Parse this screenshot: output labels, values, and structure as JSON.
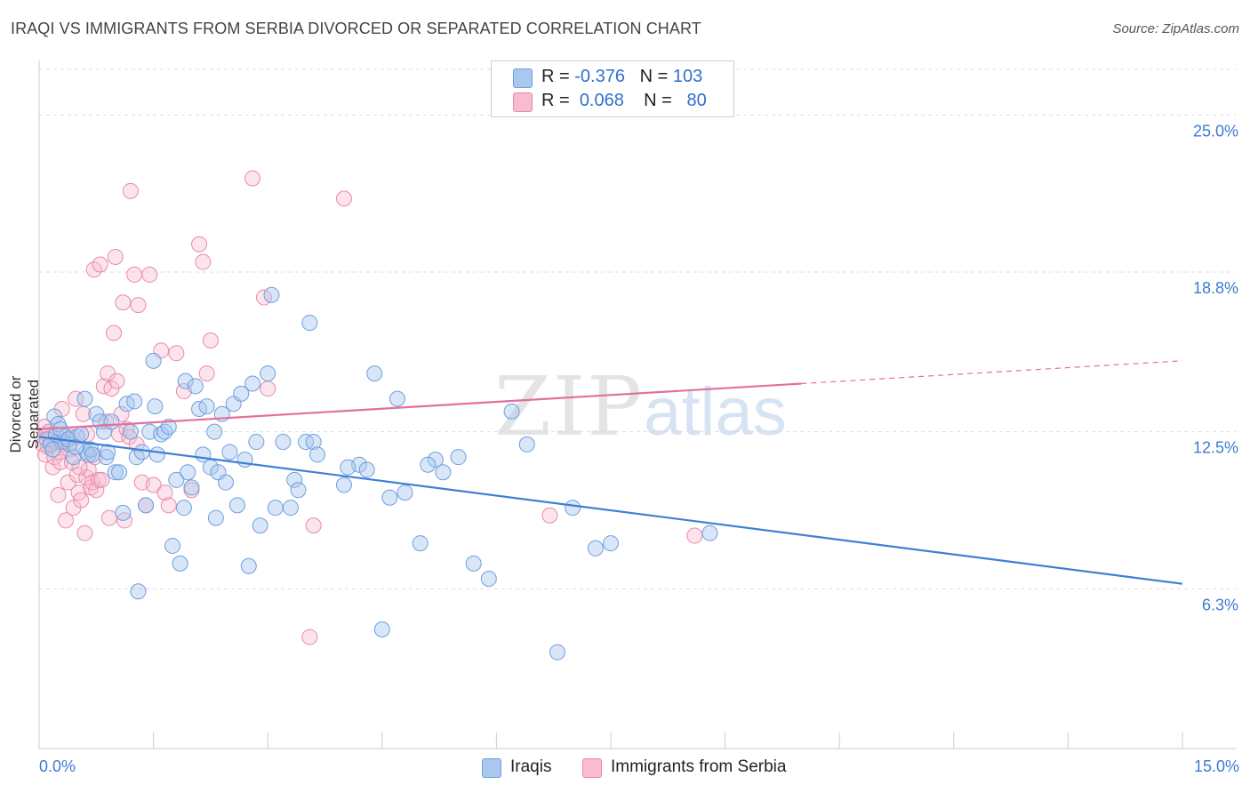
{
  "header": {
    "title": "IRAQI VS IMMIGRANTS FROM SERBIA DIVORCED OR SEPARATED CORRELATION CHART",
    "source": "Source: ZipAtlas.com"
  },
  "watermark": {
    "zip": "ZIP",
    "atlas": "atlas"
  },
  "legend": {
    "rows": [
      {
        "r_label": "R = ",
        "r_value": "-0.376",
        "n_label": "N = ",
        "n_value": "103",
        "color": "#a9c8f0",
        "border": "#6f9fdf"
      },
      {
        "r_label": "R = ",
        "r_value": "0.068",
        "n_label": "N = ",
        "n_value": "80",
        "color": "#f7bcd0",
        "border": "#e98aaa"
      }
    ]
  },
  "bottom_legend": [
    {
      "label": "Iraqis",
      "color": "#a9c8f0",
      "border": "#6f9fdf"
    },
    {
      "label": "Immigrants from Serbia",
      "color": "#f7bcd0",
      "border": "#e98aaa"
    }
  ],
  "chart_data": {
    "type": "scatter",
    "ylabel": "Divorced or Separated",
    "xlabel": "",
    "xlim": [
      0,
      15
    ],
    "ylim": [
      0,
      26.8
    ],
    "x_tick_labels": [
      "0.0%",
      "15.0%"
    ],
    "y_ticks": [
      6.3,
      12.5,
      18.8,
      25.0
    ],
    "y_tick_labels": [
      "6.3%",
      "12.5%",
      "18.8%",
      "25.0%"
    ],
    "grid": "horizontal-dashed",
    "colors": {
      "iraqis": "#3f7fd6",
      "serbia": "#e2709b"
    },
    "series": [
      {
        "name": "Iraqis",
        "trend": {
          "x0": 0,
          "y0": 12.3,
          "x1": 15,
          "y1": 6.5
        },
        "points": [
          [
            0.1,
            12.2
          ],
          [
            0.15,
            12.0
          ],
          [
            0.2,
            13.1
          ],
          [
            0.22,
            12.4
          ],
          [
            0.25,
            12.8
          ],
          [
            0.3,
            12.1
          ],
          [
            0.35,
            12.3
          ],
          [
            0.4,
            12.0
          ],
          [
            0.45,
            11.5
          ],
          [
            0.5,
            12.3
          ],
          [
            0.55,
            12.4
          ],
          [
            0.6,
            13.8
          ],
          [
            0.62,
            11.7
          ],
          [
            0.65,
            11.6
          ],
          [
            0.68,
            11.8
          ],
          [
            0.7,
            11.6
          ],
          [
            0.75,
            13.2
          ],
          [
            0.8,
            12.9
          ],
          [
            0.85,
            12.5
          ],
          [
            0.88,
            11.5
          ],
          [
            0.9,
            11.7
          ],
          [
            0.95,
            12.9
          ],
          [
            1.0,
            10.9
          ],
          [
            1.05,
            10.9
          ],
          [
            1.1,
            9.3
          ],
          [
            1.15,
            13.6
          ],
          [
            1.2,
            12.5
          ],
          [
            1.25,
            13.7
          ],
          [
            1.28,
            11.5
          ],
          [
            1.3,
            6.2
          ],
          [
            1.4,
            9.6
          ],
          [
            1.45,
            12.5
          ],
          [
            1.5,
            15.3
          ],
          [
            1.52,
            13.5
          ],
          [
            1.55,
            11.6
          ],
          [
            1.6,
            12.4
          ],
          [
            1.65,
            12.5
          ],
          [
            1.7,
            12.7
          ],
          [
            1.75,
            8.0
          ],
          [
            1.8,
            10.6
          ],
          [
            1.85,
            7.3
          ],
          [
            1.9,
            9.5
          ],
          [
            1.92,
            14.5
          ],
          [
            1.95,
            10.9
          ],
          [
            2.0,
            10.3
          ],
          [
            2.05,
            14.3
          ],
          [
            2.1,
            13.4
          ],
          [
            2.15,
            11.6
          ],
          [
            2.2,
            13.5
          ],
          [
            2.25,
            11.1
          ],
          [
            2.3,
            12.5
          ],
          [
            2.32,
            9.1
          ],
          [
            2.35,
            10.9
          ],
          [
            2.4,
            13.2
          ],
          [
            2.45,
            10.5
          ],
          [
            2.5,
            11.7
          ],
          [
            2.55,
            13.6
          ],
          [
            2.6,
            9.6
          ],
          [
            2.65,
            14.0
          ],
          [
            2.7,
            11.4
          ],
          [
            2.75,
            7.2
          ],
          [
            2.8,
            14.4
          ],
          [
            2.9,
            8.8
          ],
          [
            3.0,
            14.8
          ],
          [
            3.05,
            17.9
          ],
          [
            3.1,
            9.5
          ],
          [
            3.2,
            12.1
          ],
          [
            3.3,
            9.5
          ],
          [
            3.35,
            10.6
          ],
          [
            3.4,
            10.2
          ],
          [
            3.5,
            12.1
          ],
          [
            3.55,
            16.8
          ],
          [
            3.6,
            12.1
          ],
          [
            4.0,
            10.4
          ],
          [
            4.2,
            11.2
          ],
          [
            4.3,
            11.0
          ],
          [
            4.4,
            14.8
          ],
          [
            4.5,
            4.7
          ],
          [
            4.6,
            9.9
          ],
          [
            4.7,
            13.8
          ],
          [
            4.8,
            10.1
          ],
          [
            5.0,
            8.1
          ],
          [
            5.2,
            11.4
          ],
          [
            5.3,
            10.9
          ],
          [
            5.5,
            11.5
          ],
          [
            5.7,
            7.3
          ],
          [
            5.9,
            6.7
          ],
          [
            6.2,
            13.3
          ],
          [
            6.4,
            12.0
          ],
          [
            6.8,
            3.8
          ],
          [
            7.0,
            9.5
          ],
          [
            7.3,
            7.9
          ],
          [
            7.5,
            8.1
          ],
          [
            8.8,
            8.5
          ],
          [
            0.18,
            11.8
          ],
          [
            0.28,
            12.6
          ],
          [
            0.38,
            12.2
          ],
          [
            0.48,
            11.9
          ],
          [
            1.35,
            11.7
          ],
          [
            2.85,
            12.1
          ],
          [
            3.65,
            11.6
          ],
          [
            4.05,
            11.1
          ],
          [
            5.1,
            11.2
          ]
        ]
      },
      {
        "name": "Immigrants from Serbia",
        "trend": {
          "x0": 0,
          "y0": 12.6,
          "x1": 10.0,
          "y1": 14.4,
          "dash_x1": 15,
          "dash_y1": 15.3
        },
        "points": [
          [
            0.05,
            12.0
          ],
          [
            0.08,
            11.6
          ],
          [
            0.1,
            12.4
          ],
          [
            0.12,
            11.9
          ],
          [
            0.15,
            12.2
          ],
          [
            0.18,
            11.1
          ],
          [
            0.2,
            11.5
          ],
          [
            0.22,
            12.1
          ],
          [
            0.25,
            10.0
          ],
          [
            0.28,
            11.3
          ],
          [
            0.3,
            13.4
          ],
          [
            0.32,
            12.0
          ],
          [
            0.35,
            9.0
          ],
          [
            0.38,
            10.5
          ],
          [
            0.4,
            11.8
          ],
          [
            0.42,
            12.3
          ],
          [
            0.45,
            9.5
          ],
          [
            0.48,
            13.8
          ],
          [
            0.5,
            10.8
          ],
          [
            0.52,
            10.1
          ],
          [
            0.55,
            9.8
          ],
          [
            0.58,
            13.2
          ],
          [
            0.6,
            8.5
          ],
          [
            0.62,
            10.7
          ],
          [
            0.65,
            11.0
          ],
          [
            0.68,
            10.3
          ],
          [
            0.7,
            10.5
          ],
          [
            0.72,
            18.9
          ],
          [
            0.75,
            10.2
          ],
          [
            0.78,
            10.6
          ],
          [
            0.8,
            19.1
          ],
          [
            0.82,
            10.6
          ],
          [
            0.85,
            14.3
          ],
          [
            0.88,
            12.9
          ],
          [
            0.9,
            14.8
          ],
          [
            0.92,
            9.1
          ],
          [
            0.95,
            14.2
          ],
          [
            0.98,
            16.4
          ],
          [
            1.0,
            19.4
          ],
          [
            1.02,
            14.5
          ],
          [
            1.05,
            12.4
          ],
          [
            1.1,
            17.6
          ],
          [
            1.12,
            9.0
          ],
          [
            1.15,
            12.6
          ],
          [
            1.18,
            12.3
          ],
          [
            1.2,
            22.0
          ],
          [
            1.25,
            18.7
          ],
          [
            1.3,
            17.5
          ],
          [
            1.35,
            10.5
          ],
          [
            1.4,
            9.6
          ],
          [
            1.45,
            18.7
          ],
          [
            1.5,
            10.4
          ],
          [
            1.6,
            15.7
          ],
          [
            1.65,
            10.1
          ],
          [
            1.7,
            9.6
          ],
          [
            1.8,
            15.6
          ],
          [
            1.9,
            14.1
          ],
          [
            2.0,
            10.2
          ],
          [
            2.1,
            19.9
          ],
          [
            2.15,
            19.2
          ],
          [
            2.2,
            14.8
          ],
          [
            2.25,
            16.1
          ],
          [
            2.8,
            22.5
          ],
          [
            2.95,
            17.8
          ],
          [
            3.0,
            14.2
          ],
          [
            3.55,
            4.4
          ],
          [
            3.6,
            8.8
          ],
          [
            4.0,
            21.7
          ],
          [
            6.7,
            9.2
          ],
          [
            8.6,
            8.4
          ],
          [
            0.07,
            12.7
          ],
          [
            0.13,
            12.5
          ],
          [
            0.27,
            11.7
          ],
          [
            0.33,
            12.1
          ],
          [
            0.43,
            11.3
          ],
          [
            0.53,
            11.1
          ],
          [
            0.63,
            12.4
          ],
          [
            0.73,
            11.5
          ],
          [
            1.08,
            13.2
          ],
          [
            1.28,
            12.0
          ]
        ]
      }
    ]
  }
}
